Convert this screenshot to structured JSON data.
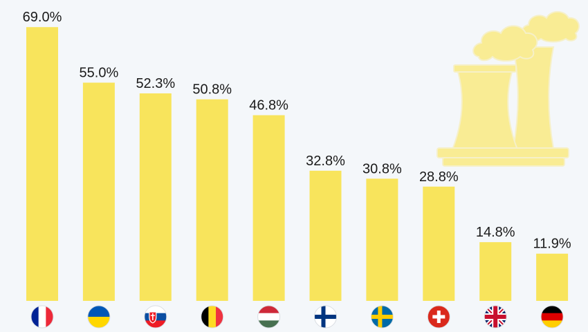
{
  "chart_data": {
    "type": "bar",
    "title": "",
    "xlabel": "",
    "ylabel": "",
    "ylim": [
      0,
      72
    ],
    "grid": false,
    "categories": [
      "France",
      "Ukraine",
      "Slovakia",
      "Belgium",
      "Hungary",
      "Finland",
      "Sweden",
      "Switzerland",
      "United Kingdom",
      "Germany"
    ],
    "category_icons": [
      "flag-france-icon",
      "flag-ukraine-icon",
      "flag-slovakia-icon",
      "flag-belgium-icon",
      "flag-hungary-icon",
      "flag-finland-icon",
      "flag-sweden-icon",
      "flag-switzerland-icon",
      "flag-uk-icon",
      "flag-germany-icon"
    ],
    "values": [
      69.0,
      55.0,
      52.3,
      50.8,
      46.8,
      32.8,
      30.8,
      28.8,
      14.8,
      11.9
    ],
    "data_labels": [
      "69.0%",
      "55.0%",
      "52.3%",
      "50.8%",
      "46.8%",
      "32.8%",
      "30.8%",
      "28.8%",
      "14.8%",
      "11.9%"
    ],
    "bar_color": "#f8e45c",
    "background_color": "#f4f7fa",
    "decoration": "nuclear-power-plant-cooling-towers-icon"
  }
}
